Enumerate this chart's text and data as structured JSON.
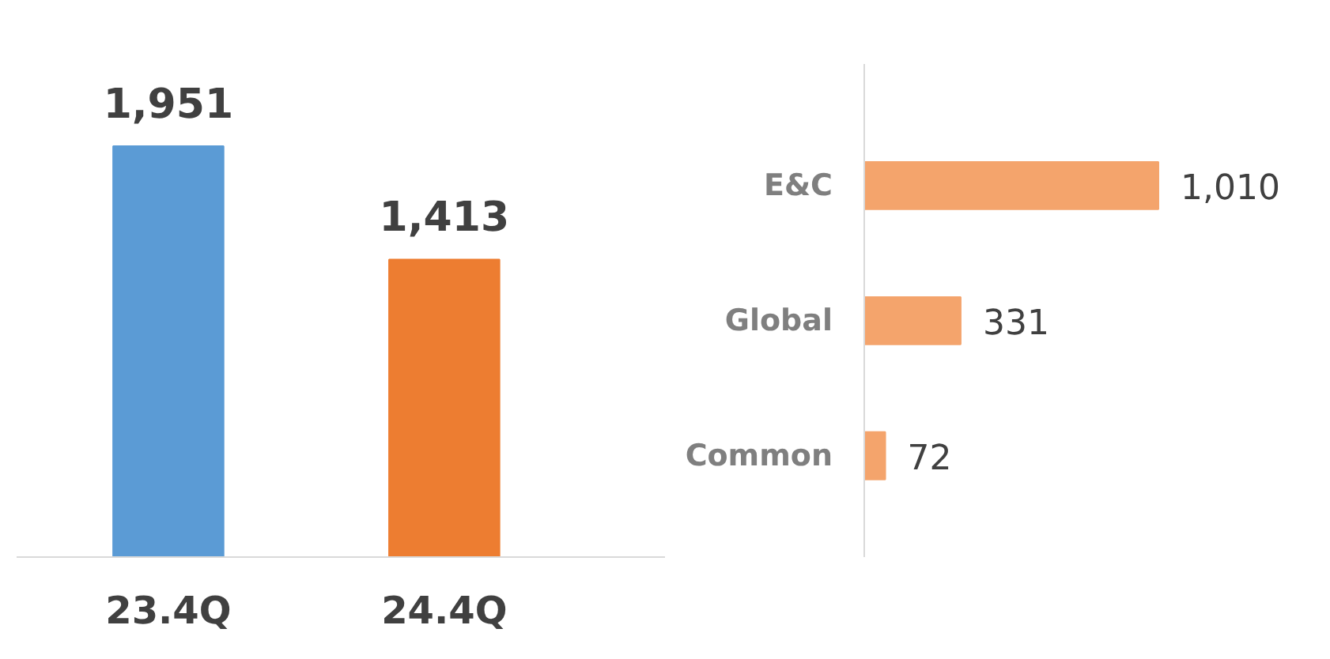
{
  "chart_data": [
    {
      "type": "bar",
      "categories": [
        "23.4Q",
        "24.4Q"
      ],
      "values": [
        1951,
        1413
      ],
      "value_labels": [
        "1,951",
        "1,413"
      ],
      "colors": [
        "#5b9bd5",
        "#ed7d31"
      ],
      "grid": false
    },
    {
      "type": "bar",
      "orientation": "horizontal",
      "categories": [
        "E&C",
        "Global",
        "Common"
      ],
      "values": [
        1010,
        331,
        72
      ],
      "value_labels": [
        "1,010",
        "331",
        "72"
      ],
      "color": "#f4a46c",
      "grid": false
    }
  ]
}
